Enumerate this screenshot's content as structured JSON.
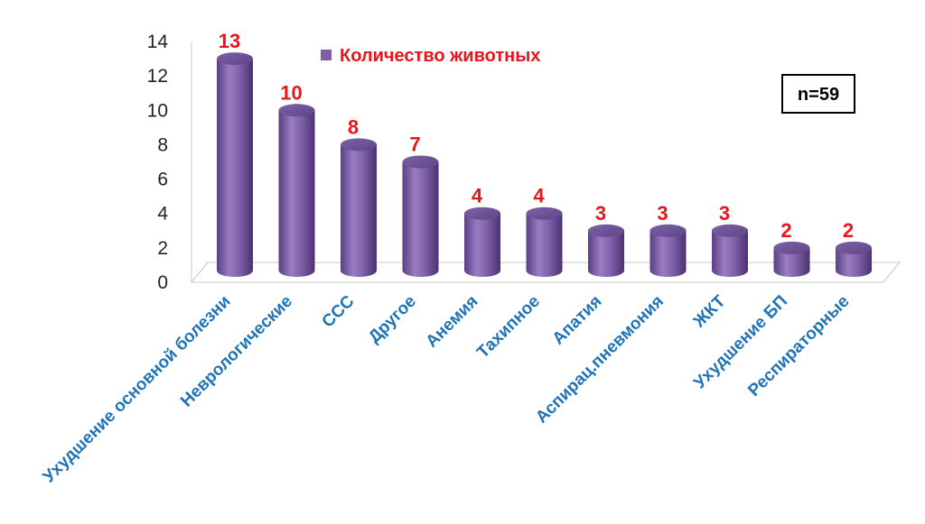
{
  "chart_data": {
    "type": "bar",
    "categories": [
      "Ухудшение основной болезни",
      "Неврологические",
      "ССС",
      "Другое",
      "Анемия",
      "Тахипное",
      "Апатия",
      "Аспирац.пневмония",
      "ЖКТ",
      "Ухудшение БП",
      "Респираторные"
    ],
    "series": [
      {
        "name": "Количество животных",
        "values": [
          13,
          10,
          8,
          7,
          4,
          4,
          3,
          3,
          3,
          2,
          2
        ]
      }
    ],
    "ylim": [
      0,
      14
    ],
    "yticks": [
      0,
      2,
      4,
      6,
      8,
      10,
      12,
      14
    ],
    "grid": false,
    "legend_position": "top-center",
    "annotation": "n=59",
    "colors": {
      "bar": "#7f5ea8",
      "bar_dark": "#4e3476",
      "bar_light": "#a88ccb",
      "value_label": "#e8151b",
      "category_label": "#1f73b7",
      "legend_text": "#e8151b"
    }
  }
}
